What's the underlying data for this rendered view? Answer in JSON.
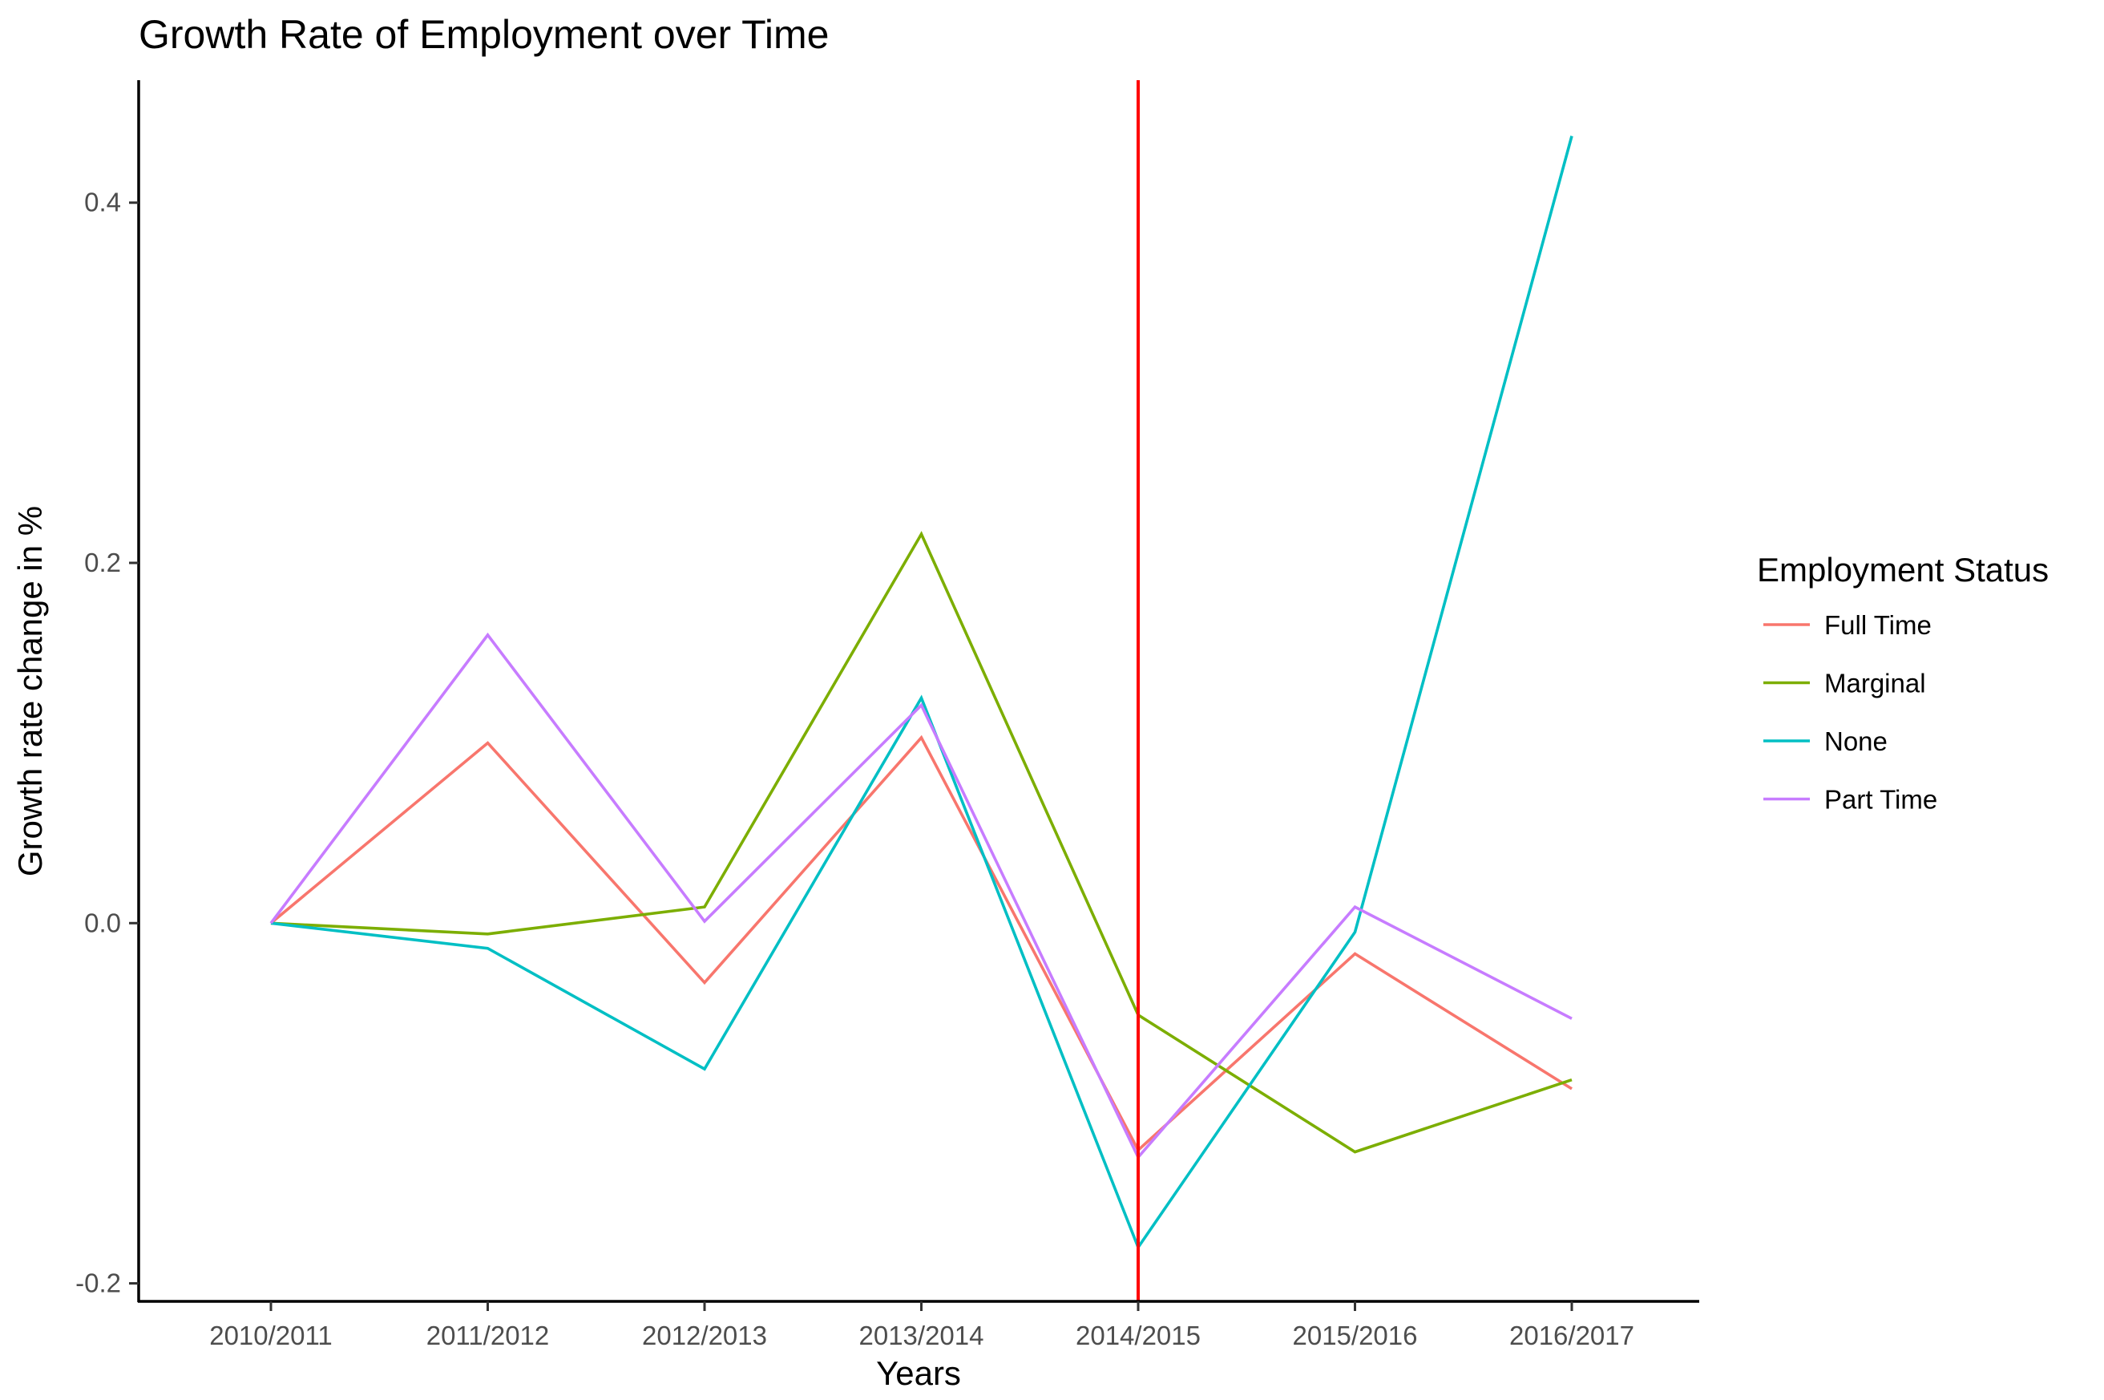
{
  "chart_data": {
    "type": "line",
    "title": "Growth Rate of Employment over Time",
    "xlabel": "Years",
    "ylabel": "Growth rate change in %",
    "categories": [
      "2010/2011",
      "2011/2012",
      "2012/2013",
      "2013/2014",
      "2014/2015",
      "2015/2016",
      "2016/2017"
    ],
    "y_ticks": [
      -0.2,
      0.0,
      0.2,
      0.4
    ],
    "y_tick_labels": [
      "-0.2",
      "0.0",
      "0.2",
      "0.4"
    ],
    "ylim": [
      -0.21,
      0.468
    ],
    "grid": false,
    "legend": {
      "title": "Employment Status",
      "position": "right"
    },
    "series": [
      {
        "name": "Full Time",
        "color": "#F8766D",
        "values": [
          0.0,
          0.1,
          -0.033,
          0.103,
          -0.126,
          -0.017,
          -0.092
        ]
      },
      {
        "name": "Marginal",
        "color": "#7CAE00",
        "values": [
          0.0,
          -0.006,
          0.009,
          0.216,
          -0.051,
          -0.127,
          -0.087
        ]
      },
      {
        "name": "None",
        "color": "#00BFC4",
        "values": [
          0.0,
          -0.014,
          -0.081,
          0.125,
          -0.18,
          -0.005,
          0.437
        ]
      },
      {
        "name": "Part Time",
        "color": "#C77CFF",
        "values": [
          0.0,
          0.16,
          0.001,
          0.121,
          -0.13,
          0.009,
          -0.053
        ]
      }
    ],
    "annotations": [
      {
        "type": "vertical-line",
        "x": "2014/2015",
        "color": "#FF0000"
      }
    ]
  }
}
